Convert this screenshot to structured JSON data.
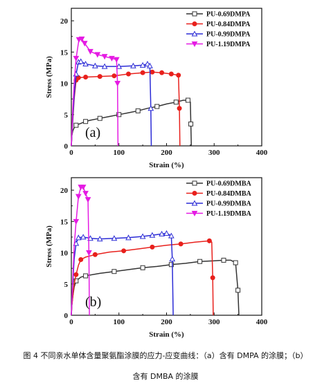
{
  "chart_data": [
    {
      "type": "line",
      "panel_label": "(a)",
      "xlabel": "Strain (%)",
      "ylabel": "Stress (MPa)",
      "xlim": [
        0,
        400
      ],
      "ylim": [
        0,
        22
      ],
      "xticks": [
        0,
        100,
        200,
        300,
        400
      ],
      "yticks": [
        0,
        5,
        10,
        15,
        20
      ],
      "legend_position": "top-right",
      "series": [
        {
          "name": "PU-0.69DMPA",
          "color": "#333333",
          "marker": "square",
          "points": [
            [
              0,
              0
            ],
            [
              1,
              1.6
            ],
            [
              3,
              2.4
            ],
            [
              6,
              2.9
            ],
            [
              10,
              3.3
            ],
            [
              20,
              3.6
            ],
            [
              30,
              3.9
            ],
            [
              40,
              4.1
            ],
            [
              60,
              4.4
            ],
            [
              80,
              4.7
            ],
            [
              100,
              5.0
            ],
            [
              120,
              5.3
            ],
            [
              140,
              5.6
            ],
            [
              160,
              6.0
            ],
            [
              180,
              6.3
            ],
            [
              200,
              6.7
            ],
            [
              220,
              7.0
            ],
            [
              235,
              7.3
            ],
            [
              245,
              7.3
            ],
            [
              250,
              7.0
            ],
            [
              251,
              3.5
            ],
            [
              252,
              0
            ]
          ]
        },
        {
          "name": "PU-0.84DMPA",
          "color": "#e8201c",
          "marker": "circle",
          "points": [
            [
              0,
              0
            ],
            [
              1,
              1.5
            ],
            [
              3,
              4
            ],
            [
              6,
              7.5
            ],
            [
              10,
              10.5
            ],
            [
              15,
              10.9
            ],
            [
              30,
              11.0
            ],
            [
              60,
              11.1
            ],
            [
              90,
              11.2
            ],
            [
              120,
              11.5
            ],
            [
              150,
              11.7
            ],
            [
              170,
              11.8
            ],
            [
              190,
              11.7
            ],
            [
              210,
              11.5
            ],
            [
              225,
              11.3
            ],
            [
              227,
              6
            ],
            [
              228,
              0
            ]
          ]
        },
        {
          "name": "PU-0.99DMPA",
          "color": "#2b2bd6",
          "marker": "triangle-up",
          "points": [
            [
              0,
              0
            ],
            [
              1,
              1.5
            ],
            [
              3,
              4.5
            ],
            [
              6,
              8
            ],
            [
              10,
              11.5
            ],
            [
              15,
              13.4
            ],
            [
              20,
              13.5
            ],
            [
              30,
              13.1
            ],
            [
              50,
              12.8
            ],
            [
              70,
              12.7
            ],
            [
              100,
              12.7
            ],
            [
              130,
              12.8
            ],
            [
              150,
              12.9
            ],
            [
              160,
              13.1
            ],
            [
              165,
              12.8
            ],
            [
              167,
              6
            ],
            [
              168,
              0
            ]
          ]
        },
        {
          "name": "PU-1.19DMPA",
          "color": "#e51be3",
          "marker": "triangle-down",
          "points": [
            [
              0,
              0
            ],
            [
              1,
              2
            ],
            [
              3,
              6
            ],
            [
              6,
              10
            ],
            [
              10,
              14
            ],
            [
              16,
              17.0
            ],
            [
              22,
              17.1
            ],
            [
              28,
              16.4
            ],
            [
              40,
              15.1
            ],
            [
              55,
              14.6
            ],
            [
              70,
              14.3
            ],
            [
              85,
              14.0
            ],
            [
              95,
              13.8
            ],
            [
              97,
              10
            ],
            [
              98,
              0
            ]
          ]
        }
      ]
    },
    {
      "type": "line",
      "panel_label": "(b)",
      "xlabel": "Strain (%)",
      "ylabel": "Stress (MPa)",
      "xlim": [
        0,
        400
      ],
      "ylim": [
        0,
        22
      ],
      "xticks": [
        0,
        100,
        200,
        300,
        400
      ],
      "yticks": [
        0,
        5,
        10,
        15,
        20
      ],
      "legend_position": "top-right",
      "series": [
        {
          "name": "PU-0.69DMBA",
          "color": "#333333",
          "marker": "square",
          "points": [
            [
              0,
              0
            ],
            [
              1,
              1.5
            ],
            [
              3,
              3
            ],
            [
              6,
              4.5
            ],
            [
              10,
              5.5
            ],
            [
              20,
              6.1
            ],
            [
              30,
              6.3
            ],
            [
              60,
              6.7
            ],
            [
              90,
              7.0
            ],
            [
              120,
              7.3
            ],
            [
              150,
              7.6
            ],
            [
              180,
              7.8
            ],
            [
              210,
              8.1
            ],
            [
              240,
              8.3
            ],
            [
              270,
              8.6
            ],
            [
              300,
              8.7
            ],
            [
              320,
              8.8
            ],
            [
              335,
              8.8
            ],
            [
              345,
              8.4
            ],
            [
              350,
              4
            ],
            [
              352,
              0
            ]
          ]
        },
        {
          "name": "PU-0.84DMBA",
          "color": "#e8201c",
          "marker": "circle",
          "points": [
            [
              0,
              0
            ],
            [
              1,
              1.5
            ],
            [
              3,
              3
            ],
            [
              6,
              5
            ],
            [
              10,
              6.5
            ],
            [
              15,
              8.0
            ],
            [
              20,
              8.9
            ],
            [
              30,
              9.3
            ],
            [
              50,
              9.7
            ],
            [
              80,
              10.1
            ],
            [
              110,
              10.3
            ],
            [
              140,
              10.6
            ],
            [
              170,
              10.9
            ],
            [
              200,
              11.2
            ],
            [
              230,
              11.4
            ],
            [
              260,
              11.7
            ],
            [
              290,
              11.9
            ],
            [
              295,
              11.7
            ],
            [
              297,
              6
            ],
            [
              298,
              0
            ]
          ]
        },
        {
          "name": "PU-0.99DMBA",
          "color": "#2b2bd6",
          "marker": "triangle-up",
          "points": [
            [
              0,
              0
            ],
            [
              1,
              2
            ],
            [
              3,
              5
            ],
            [
              6,
              9
            ],
            [
              10,
              11.5
            ],
            [
              15,
              12.4
            ],
            [
              25,
              12.5
            ],
            [
              40,
              12.3
            ],
            [
              60,
              12.2
            ],
            [
              90,
              12.3
            ],
            [
              120,
              12.4
            ],
            [
              150,
              12.6
            ],
            [
              170,
              12.8
            ],
            [
              190,
              13.0
            ],
            [
              200,
              13.1
            ],
            [
              210,
              12.7
            ],
            [
              212,
              9
            ],
            [
              214,
              0
            ]
          ]
        },
        {
          "name": "PU-1.19DMBA",
          "color": "#e51be3",
          "marker": "triangle-down",
          "points": [
            [
              0,
              0
            ],
            [
              1,
              2
            ],
            [
              3,
              6
            ],
            [
              6,
              11
            ],
            [
              10,
              15
            ],
            [
              15,
              19
            ],
            [
              20,
              20.5
            ],
            [
              25,
              20.5
            ],
            [
              30,
              19.5
            ],
            [
              35,
              18.5
            ],
            [
              37,
              10
            ],
            [
              38,
              0
            ]
          ]
        }
      ]
    }
  ],
  "caption": {
    "line1": "图 4  不同亲水单体含量聚氨酯涂膜的应力-应变曲线：（a）含有 DMPA 的涂膜；（b）",
    "line2": "含有 DMBA 的涂膜"
  }
}
